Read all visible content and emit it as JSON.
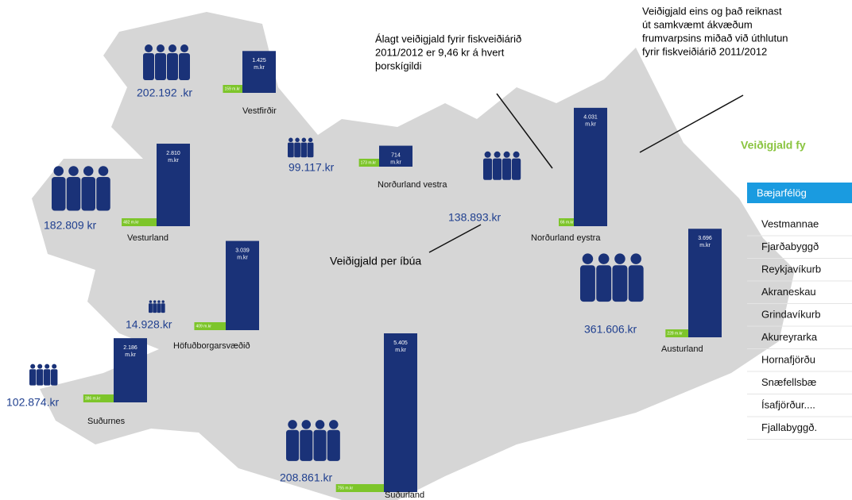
{
  "regions": [
    {
      "name": "Vestfirðir",
      "per_capita": "202.192 .kr",
      "fee_value": 1425,
      "fee_label": "1.425",
      "small_value": 159,
      "small_label": "159 m.kr"
    },
    {
      "name": "Norðurland vestra",
      "per_capita": "99.117.kr",
      "fee_value": 714,
      "fee_label": "714",
      "small_value": 173,
      "small_label": "173 m.kr"
    },
    {
      "name": "Norðurland eystra",
      "per_capita": "138.893.kr",
      "fee_value": 4031,
      "fee_label": "4.031",
      "small_value": 66,
      "small_label": "66 m.kr"
    },
    {
      "name": "Vesturland",
      "per_capita": "182.809 kr",
      "fee_value": 2810,
      "fee_label": "2.810",
      "small_value": 482,
      "small_label": "482 m.kr"
    },
    {
      "name": "Höfuðborgarsvæðið",
      "per_capita": "14.928.kr",
      "fee_value": 3039,
      "fee_label": "3.039",
      "small_value": 409,
      "small_label": "409 m.kr"
    },
    {
      "name": "Suðurnes",
      "per_capita": "102.874.kr",
      "fee_value": 2186,
      "fee_label": "2.186",
      "small_value": 386,
      "small_label": "386 m.kr"
    },
    {
      "name": "Suðurland",
      "per_capita": "208.861.kr",
      "fee_value": 5405,
      "fee_label": "5.405",
      "small_value": 755,
      "small_label": "755 m.kr"
    },
    {
      "name": "Austurland",
      "per_capita": "361.606.kr",
      "fee_value": 3696,
      "fee_label": "3.696",
      "small_value": 228,
      "small_label": "228 m.kr"
    }
  ],
  "unit": "m.kr",
  "annotations": {
    "levied": [
      "Álagt veiðigjald fyrir fiskveiðiárið",
      "2011/2012 er 9,46 kr á hvert",
      "þorskígildi"
    ],
    "calculated": [
      "Veiðigjald eins og það reiknast",
      "út samkvæmt ákvæðum",
      "frumvarpsins miðað við úthlutun",
      "fyrir fiskveiðiárið 2011/2012"
    ],
    "per_resident": "Veiðigjald per íbúa"
  },
  "table": {
    "title": "Veiðigjald fy",
    "header": "Bæjarfélög",
    "rows": [
      "Vestmannae",
      "Fjarðabyggð",
      "Reykjavíkurb",
      "Akraneskau",
      "Grindavíkurb",
      "Akureyrarka",
      "Hornafjörðu",
      "Snæfellsbæ",
      "Ísafjörður....",
      "Fjallabyggð."
    ]
  }
}
